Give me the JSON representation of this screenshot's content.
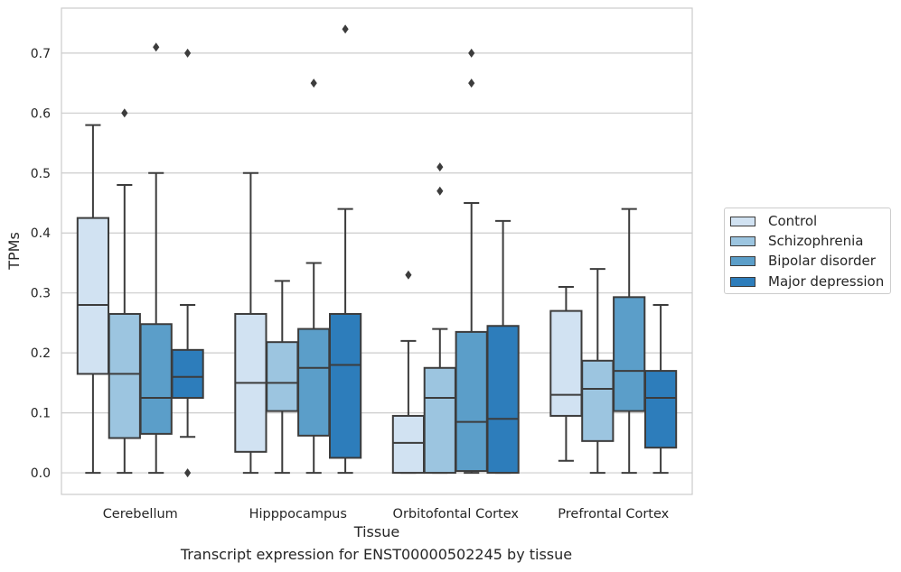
{
  "chart_data": {
    "type": "box",
    "title": "",
    "xlabel": "Tissue",
    "ylabel": "TPMs",
    "ylim": [
      -0.036,
      0.775
    ],
    "yticks": [
      "0.0",
      "0.1",
      "0.2",
      "0.3",
      "0.4",
      "0.5",
      "0.6",
      "0.7"
    ],
    "grid": "horizontal",
    "legend_position": "right",
    "categories": [
      "Cerebellum",
      "Hipppocampus",
      "Orbitofontal Cortex",
      "Prefrontal Cortex"
    ],
    "series": [
      {
        "name": "Control",
        "color": "#d1e2f2",
        "boxes": [
          {
            "q1": 0.165,
            "median": 0.28,
            "q3": 0.425,
            "whisker_low": 0.0,
            "whisker_high": 0.58,
            "outliers": []
          },
          {
            "q1": 0.035,
            "median": 0.15,
            "q3": 0.265,
            "whisker_low": 0.0,
            "whisker_high": 0.5,
            "outliers": []
          },
          {
            "q1": 0.0,
            "median": 0.05,
            "q3": 0.095,
            "whisker_low": 0.0,
            "whisker_high": 0.22,
            "outliers": [
              0.33
            ]
          },
          {
            "q1": 0.095,
            "median": 0.13,
            "q3": 0.27,
            "whisker_low": 0.02,
            "whisker_high": 0.31,
            "outliers": []
          }
        ]
      },
      {
        "name": "Schizophrenia",
        "color": "#9cc5e0",
        "boxes": [
          {
            "q1": 0.058,
            "median": 0.165,
            "q3": 0.265,
            "whisker_low": 0.0,
            "whisker_high": 0.48,
            "outliers": [
              0.6
            ]
          },
          {
            "q1": 0.103,
            "median": 0.15,
            "q3": 0.218,
            "whisker_low": 0.0,
            "whisker_high": 0.32,
            "outliers": []
          },
          {
            "q1": 0.0,
            "median": 0.125,
            "q3": 0.175,
            "whisker_low": 0.0,
            "whisker_high": 0.24,
            "outliers": [
              0.47,
              0.51
            ]
          },
          {
            "q1": 0.053,
            "median": 0.14,
            "q3": 0.187,
            "whisker_low": 0.0,
            "whisker_high": 0.34,
            "outliers": []
          }
        ]
      },
      {
        "name": "Bipolar disorder",
        "color": "#5b9ec9",
        "boxes": [
          {
            "q1": 0.065,
            "median": 0.125,
            "q3": 0.248,
            "whisker_low": 0.0,
            "whisker_high": 0.5,
            "outliers": [
              0.71
            ]
          },
          {
            "q1": 0.062,
            "median": 0.175,
            "q3": 0.24,
            "whisker_low": 0.0,
            "whisker_high": 0.35,
            "outliers": [
              0.65
            ]
          },
          {
            "q1": 0.003,
            "median": 0.085,
            "q3": 0.235,
            "whisker_low": 0.0,
            "whisker_high": 0.45,
            "outliers": [
              0.65,
              0.7
            ]
          },
          {
            "q1": 0.103,
            "median": 0.17,
            "q3": 0.293,
            "whisker_low": 0.0,
            "whisker_high": 0.44,
            "outliers": []
          }
        ]
      },
      {
        "name": "Major depression",
        "color": "#2d7dbb",
        "boxes": [
          {
            "q1": 0.125,
            "median": 0.16,
            "q3": 0.205,
            "whisker_low": 0.06,
            "whisker_high": 0.28,
            "outliers": [
              0.0,
              0.7
            ]
          },
          {
            "q1": 0.025,
            "median": 0.18,
            "q3": 0.265,
            "whisker_low": 0.0,
            "whisker_high": 0.44,
            "outliers": [
              0.74
            ]
          },
          {
            "q1": 0.0,
            "median": 0.09,
            "q3": 0.245,
            "whisker_low": 0.0,
            "whisker_high": 0.42,
            "outliers": []
          },
          {
            "q1": 0.042,
            "median": 0.125,
            "q3": 0.17,
            "whisker_low": 0.0,
            "whisker_high": 0.28,
            "outliers": []
          }
        ]
      }
    ]
  },
  "caption": "Transcript expression for ENST00000502245 by tissue"
}
